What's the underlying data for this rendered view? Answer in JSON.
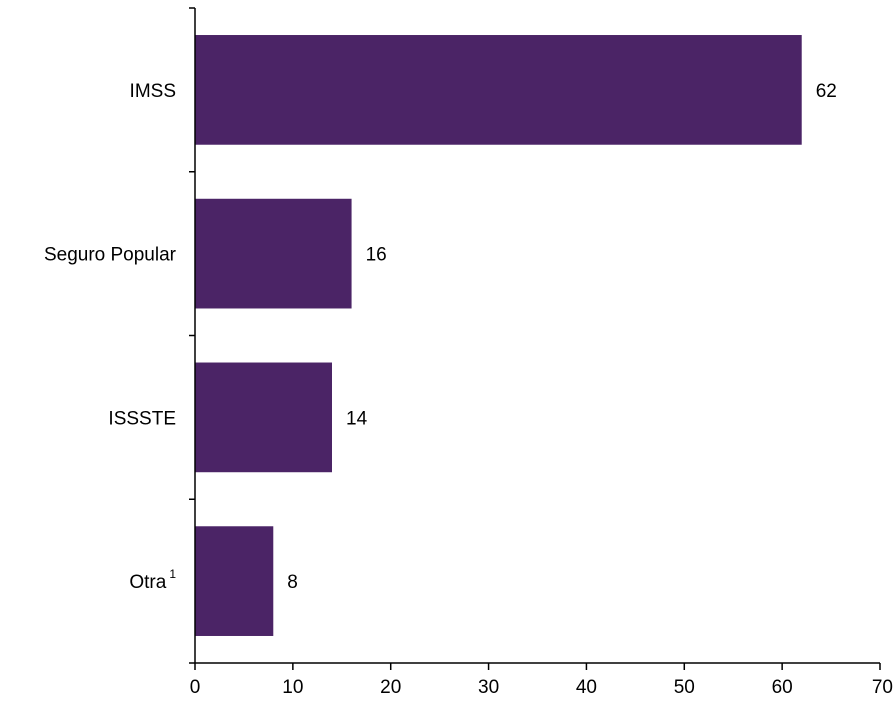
{
  "chart_data": {
    "type": "bar",
    "orientation": "horizontal",
    "categories": [
      "IMSS",
      "Seguro Popular",
      "ISSSTE",
      "Otra"
    ],
    "category_superscripts": [
      "",
      "",
      "",
      "1"
    ],
    "values": [
      62,
      16,
      14,
      8
    ],
    "data_labels": [
      "62",
      "16",
      "14",
      "8"
    ],
    "xlim": [
      0,
      70
    ],
    "xticks": [
      0,
      10,
      20,
      30,
      40,
      50,
      60,
      70
    ],
    "xtick_labels": [
      "0",
      "10",
      "20",
      "30",
      "40",
      "50",
      "60",
      "70"
    ],
    "title": "",
    "xlabel": "",
    "ylabel": "",
    "grid": false,
    "legend": "none",
    "colors": {
      "bar": "#4b2466",
      "text": "#000000",
      "axis": "#000000"
    }
  }
}
